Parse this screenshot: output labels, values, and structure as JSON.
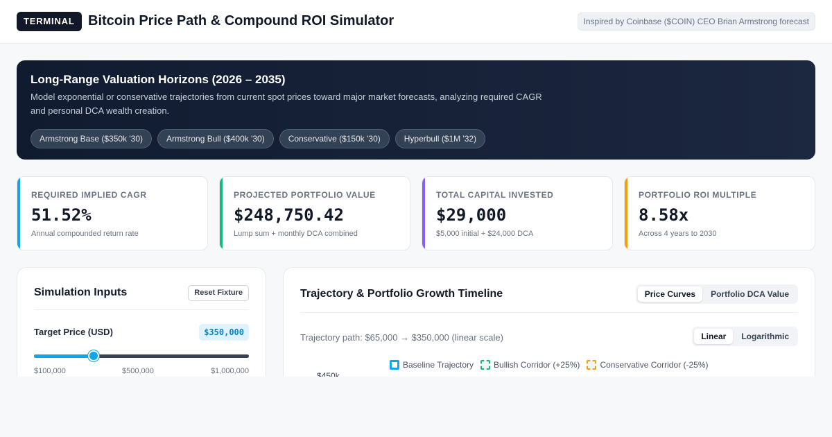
{
  "header": {
    "badge": "TERMINAL",
    "title": "Bitcoin Price Path & Compound ROI Simulator",
    "inspired": "Inspired by Coinbase ($COIN) CEO Brian Armstrong forecast"
  },
  "hero": {
    "title": "Long-Range Valuation Horizons (2026 – 2035)",
    "description": "Model exponential or conservative trajectories from current spot prices toward major market forecasts, analyzing required CAGR and personal DCA wealth creation.",
    "presets": [
      "Armstrong Base ($350k '30)",
      "Armstrong Bull ($400k '30)",
      "Conservative ($150k '30)",
      "Hyperbull ($1M '32)"
    ]
  },
  "kpis": [
    {
      "label": "REQUIRED IMPLIED CAGR",
      "value": "51.52%",
      "sub": "Annual compounded return rate",
      "color": "#0ea5e9"
    },
    {
      "label": "PROJECTED PORTFOLIO VALUE",
      "value": "$248,750.42",
      "sub": "Lump sum + monthly DCA combined",
      "color": "#10b981"
    },
    {
      "label": "TOTAL CAPITAL INVESTED",
      "value": "$29,000",
      "sub": "$5,000 initial + $24,000 DCA",
      "color": "#8b5cf6"
    },
    {
      "label": "PORTFOLIO ROI MULTIPLE",
      "value": "8.58x",
      "sub": "Across 4 years to 2030",
      "color": "#f59e0b"
    }
  ],
  "inputs": {
    "title": "Simulation Inputs",
    "reset": "Reset Fixture",
    "target_label": "Target Price (USD)",
    "target_value": "$350,000",
    "slider_fraction": 0.2778,
    "ticks": [
      "$100,000",
      "$500,000",
      "$1,000,000"
    ]
  },
  "chart": {
    "title": "Trajectory & Portfolio Growth Timeline",
    "tabs": [
      "Price Curves",
      "Portfolio DCA Value"
    ],
    "active_tab": 0,
    "path_text": "Trajectory path: $65,000 → $350,000 (linear scale)",
    "scale_tabs": [
      "Linear",
      "Logarithmic"
    ],
    "active_scale": 0,
    "legend": [
      {
        "label": "Baseline Trajectory",
        "color": "#0ea5e9",
        "style": "solid"
      },
      {
        "label": "Bullish Corridor (+25%)",
        "color": "#10b981",
        "style": "dashed"
      },
      {
        "label": "Conservative Corridor (-25%)",
        "color": "#f59e0b",
        "style": "dashed"
      }
    ],
    "y_tick_top": "$450k"
  }
}
